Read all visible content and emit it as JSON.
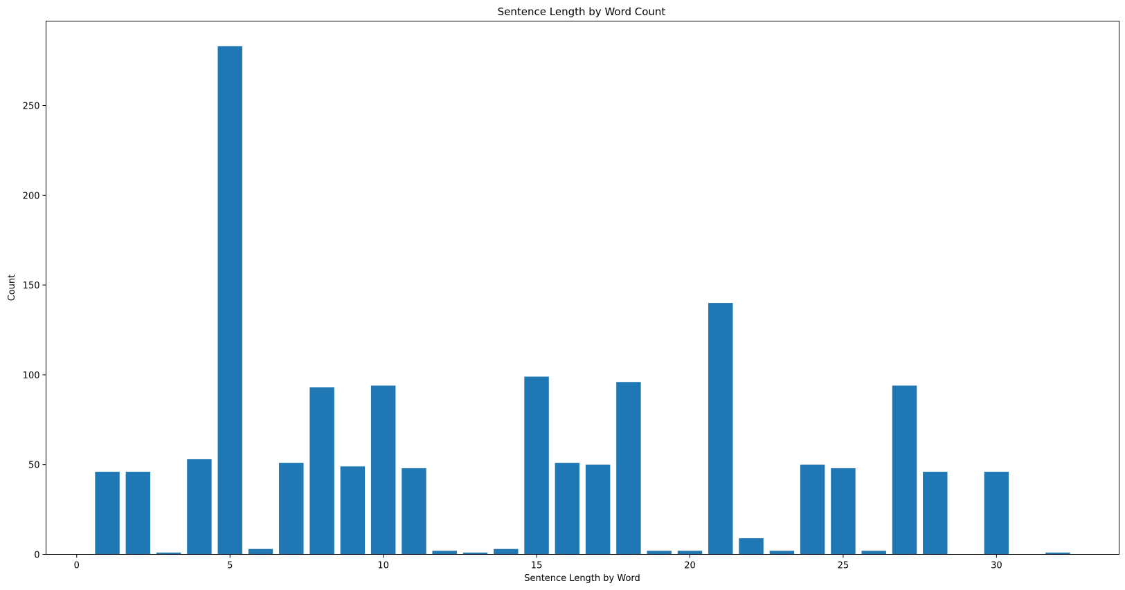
{
  "chart_data": {
    "type": "bar",
    "title": "Sentence Length by Word Count",
    "xlabel": "Sentence Length by Word",
    "ylabel": "Count",
    "x": [
      1,
      2,
      3,
      4,
      5,
      6,
      7,
      8,
      9,
      10,
      11,
      12,
      13,
      14,
      15,
      16,
      17,
      18,
      19,
      20,
      21,
      22,
      23,
      24,
      25,
      26,
      27,
      28,
      30,
      32
    ],
    "values": [
      46,
      46,
      1,
      53,
      283,
      3,
      51,
      93,
      49,
      94,
      48,
      2,
      1,
      3,
      99,
      51,
      50,
      96,
      2,
      2,
      140,
      9,
      2,
      50,
      48,
      2,
      94,
      46,
      46,
      1
    ],
    "xlim": [
      -1.0,
      34.0
    ],
    "ylim": [
      0,
      297
    ],
    "xticks": [
      0,
      5,
      10,
      15,
      20,
      25,
      30
    ],
    "yticks": [
      0,
      50,
      100,
      150,
      200,
      250
    ],
    "bar_color": "#1f77b4",
    "grid": false
  }
}
